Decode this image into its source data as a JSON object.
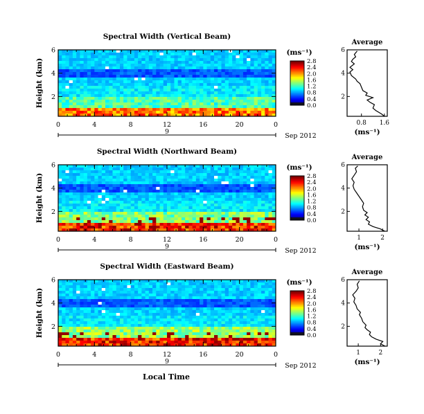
{
  "figure": {
    "shared_xlabel": "Local Time",
    "date_label": "Sep 2012",
    "date_marker": "9"
  },
  "chart_data": [
    {
      "type": "heatmap",
      "title": "Spectral Width (Vertical Beam)",
      "ylabel": "Height (km)",
      "xlim": [
        0,
        24
      ],
      "ylim": [
        0.3,
        6.0
      ],
      "xticks": [
        "0",
        "4",
        "8",
        "12",
        "16",
        "20",
        "0"
      ],
      "yticks": [
        "2",
        "4",
        "6"
      ],
      "colorbar": {
        "label": "(ms⁻¹)",
        "range": [
          0.0,
          2.8
        ],
        "ticks": [
          "0.0",
          "0.4",
          "0.8",
          "1.2",
          "1.6",
          "2.0",
          "2.4",
          "2.8"
        ]
      },
      "profile": {
        "title": "Average",
        "xlabel": "(ms⁻¹)",
        "xlim": [
          0.3,
          1.7
        ],
        "xticks": [
          "0.8",
          "1.6"
        ],
        "yticks": [
          "2",
          "4",
          "6"
        ],
        "points": [
          [
            1.6,
            0.3
          ],
          [
            1.5,
            0.5
          ],
          [
            1.3,
            0.8
          ],
          [
            1.2,
            1.0
          ],
          [
            1.25,
            1.3
          ],
          [
            1.1,
            1.5
          ],
          [
            1.0,
            1.7
          ],
          [
            1.2,
            1.9
          ],
          [
            0.95,
            2.1
          ],
          [
            1.0,
            2.3
          ],
          [
            0.85,
            2.5
          ],
          [
            0.8,
            2.8
          ],
          [
            0.75,
            3.1
          ],
          [
            0.65,
            3.3
          ],
          [
            0.6,
            3.5
          ],
          [
            0.45,
            3.8
          ],
          [
            0.4,
            4.1
          ],
          [
            0.5,
            4.3
          ],
          [
            0.4,
            4.5
          ],
          [
            0.55,
            4.8
          ],
          [
            0.45,
            5.0
          ],
          [
            0.5,
            5.2
          ],
          [
            0.6,
            5.4
          ],
          [
            0.55,
            5.6
          ],
          [
            0.65,
            5.9
          ]
        ]
      }
    },
    {
      "type": "heatmap",
      "title": "Spectral Width (Northward Beam)",
      "ylabel": "Height (km)",
      "xlim": [
        0,
        24
      ],
      "ylim": [
        0.3,
        6.0
      ],
      "xticks": [
        "0",
        "4",
        "8",
        "12",
        "16",
        "20",
        "0"
      ],
      "yticks": [
        "2",
        "4",
        "6"
      ],
      "colorbar": {
        "label": "(ms⁻¹)",
        "range": [
          0.0,
          2.8
        ],
        "ticks": [
          "0.0",
          "0.4",
          "0.8",
          "1.2",
          "1.6",
          "2.0",
          "2.4",
          "2.8"
        ]
      },
      "profile": {
        "title": "Average",
        "xlabel": "(ms⁻¹)",
        "xlim": [
          0.5,
          2.2
        ],
        "xticks": [
          "1",
          "2"
        ],
        "yticks": [
          "2",
          "4",
          "6"
        ],
        "points": [
          [
            2.1,
            0.3
          ],
          [
            1.9,
            0.5
          ],
          [
            1.6,
            0.7
          ],
          [
            1.4,
            0.9
          ],
          [
            1.45,
            1.1
          ],
          [
            1.3,
            1.3
          ],
          [
            1.4,
            1.5
          ],
          [
            1.25,
            1.7
          ],
          [
            1.35,
            1.9
          ],
          [
            1.2,
            2.1
          ],
          [
            1.15,
            2.4
          ],
          [
            1.2,
            2.7
          ],
          [
            1.1,
            3.0
          ],
          [
            1.0,
            3.3
          ],
          [
            0.9,
            3.6
          ],
          [
            0.8,
            3.9
          ],
          [
            0.75,
            4.2
          ],
          [
            0.8,
            4.5
          ],
          [
            0.7,
            4.8
          ],
          [
            0.8,
            5.1
          ],
          [
            0.9,
            5.4
          ],
          [
            0.85,
            5.7
          ],
          [
            0.95,
            5.9
          ]
        ]
      }
    },
    {
      "type": "heatmap",
      "title": "Spectral Width (Eastward Beam)",
      "ylabel": "Height (km)",
      "xlim": [
        0,
        24
      ],
      "ylim": [
        0.3,
        6.0
      ],
      "xticks": [
        "0",
        "4",
        "8",
        "12",
        "16",
        "20",
        "0"
      ],
      "yticks": [
        "2",
        "4",
        "6"
      ],
      "colorbar": {
        "label": "(ms⁻¹)",
        "range": [
          0.0,
          2.8
        ],
        "ticks": [
          "0.0",
          "0.4",
          "0.8",
          "1.2",
          "1.6",
          "2.0",
          "2.4",
          "2.8"
        ]
      },
      "profile": {
        "title": "Average",
        "xlabel": "(ms⁻¹)",
        "xlim": [
          0.5,
          2.3
        ],
        "xticks": [
          "1",
          "2"
        ],
        "yticks": [
          "2",
          "4",
          "6"
        ],
        "points": [
          [
            2.2,
            0.3
          ],
          [
            2.0,
            0.5
          ],
          [
            2.1,
            0.7
          ],
          [
            1.8,
            0.9
          ],
          [
            1.6,
            1.1
          ],
          [
            1.5,
            1.3
          ],
          [
            1.55,
            1.5
          ],
          [
            1.4,
            1.7
          ],
          [
            1.3,
            1.9
          ],
          [
            1.35,
            2.1
          ],
          [
            1.2,
            2.4
          ],
          [
            1.15,
            2.7
          ],
          [
            1.05,
            3.0
          ],
          [
            1.1,
            3.2
          ],
          [
            0.95,
            3.5
          ],
          [
            0.9,
            3.8
          ],
          [
            0.8,
            4.1
          ],
          [
            0.85,
            4.4
          ],
          [
            0.75,
            4.7
          ],
          [
            0.9,
            5.0
          ],
          [
            1.0,
            5.3
          ],
          [
            0.95,
            5.6
          ],
          [
            1.05,
            5.9
          ]
        ]
      }
    }
  ]
}
